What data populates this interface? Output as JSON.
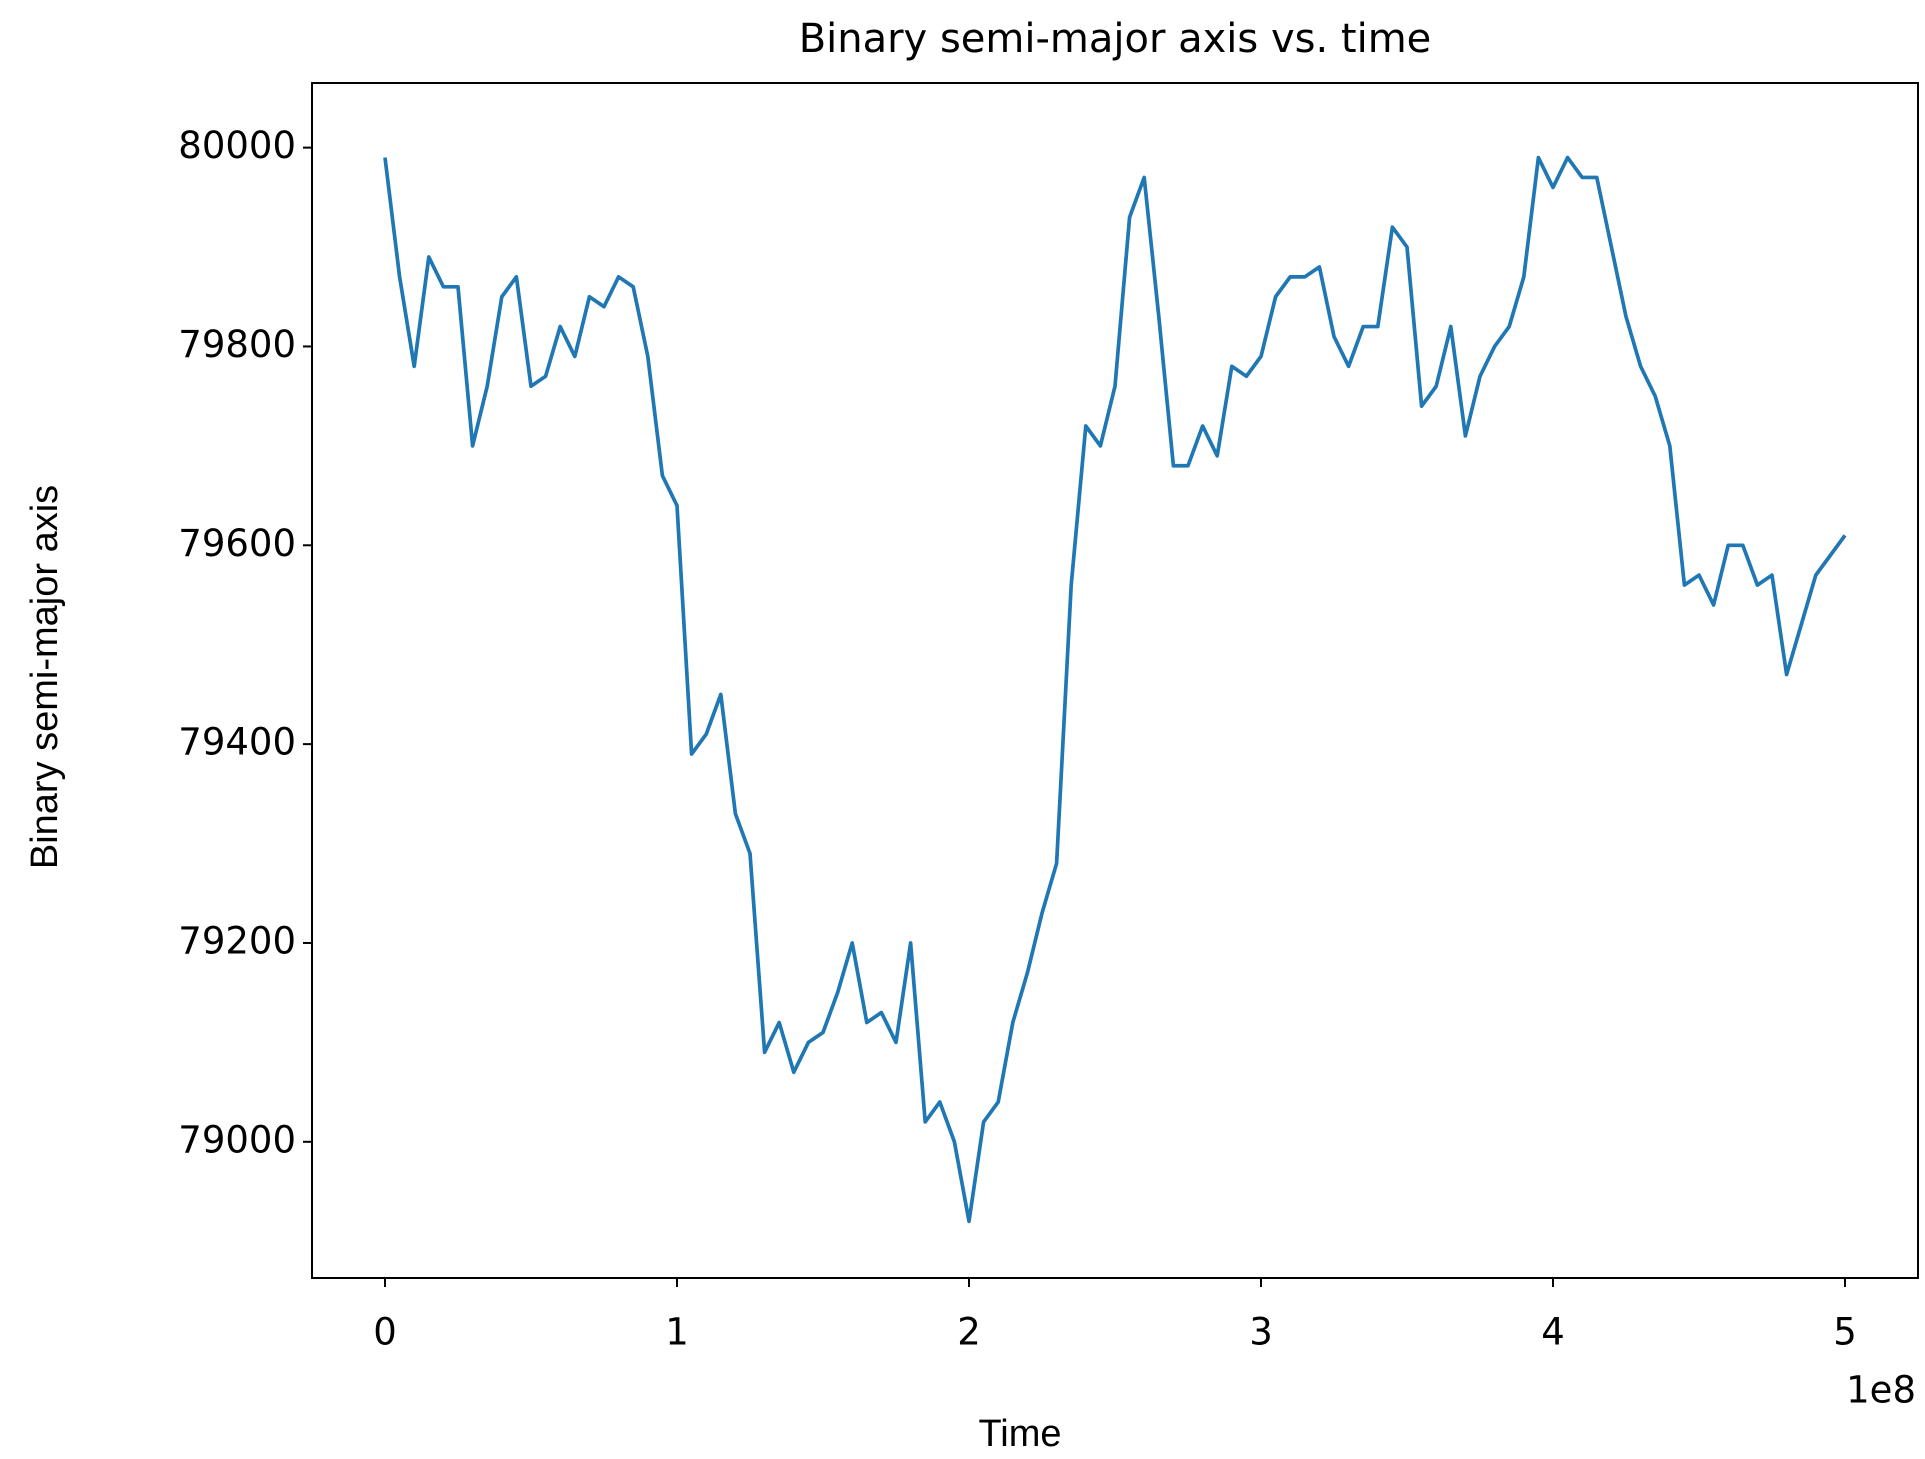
{
  "chart_data": {
    "type": "line",
    "title": "Binary semi-major axis vs. time",
    "xlabel": "Time",
    "ylabel": "Binary semi-major axis",
    "x_offset_label": "1e8",
    "x": [
      0,
      5000000,
      10000000,
      15000000,
      20000000,
      25000000,
      30000000,
      35000000,
      40000000,
      45000000,
      50000000,
      55000000,
      60000000,
      65000000,
      70000000,
      75000000,
      80000000,
      85000000,
      90000000,
      95000000,
      100000000,
      105000000,
      110000000,
      115000000,
      120000000,
      125000000,
      130000000,
      135000000,
      140000000,
      145000000,
      150000000,
      155000000,
      160000000,
      165000000,
      170000000,
      175000000,
      180000000,
      185000000,
      190000000,
      195000000,
      200000000,
      205000000,
      210000000,
      215000000,
      220000000,
      225000000,
      230000000,
      235000000,
      240000000,
      245000000,
      250000000,
      255000000,
      260000000,
      265000000,
      270000000,
      275000000,
      280000000,
      285000000,
      290000000,
      295000000,
      300000000,
      305000000,
      310000000,
      315000000,
      320000000,
      325000000,
      330000000,
      335000000,
      340000000,
      345000000,
      350000000,
      355000000,
      360000000,
      365000000,
      370000000,
      375000000,
      380000000,
      385000000,
      390000000,
      395000000,
      400000000,
      405000000,
      410000000,
      415000000,
      420000000,
      425000000,
      430000000,
      435000000,
      440000000,
      445000000,
      450000000,
      455000000,
      460000000,
      465000000,
      470000000,
      475000000,
      480000000,
      485000000,
      490000000,
      495000000,
      500000000
    ],
    "values": [
      79990,
      79870,
      79780,
      79890,
      79860,
      79860,
      79700,
      79760,
      79850,
      79870,
      79760,
      79770,
      79820,
      79790,
      79850,
      79840,
      79870,
      79860,
      79790,
      79670,
      79640,
      79390,
      79410,
      79450,
      79330,
      79290,
      79090,
      79120,
      79070,
      79100,
      79110,
      79150,
      79200,
      79120,
      79130,
      79100,
      79200,
      79020,
      79040,
      79000,
      78920,
      79020,
      79040,
      79120,
      79170,
      79230,
      79280,
      79560,
      79720,
      79700,
      79760,
      79930,
      79970,
      79830,
      79680,
      79680,
      79720,
      79690,
      79780,
      79770,
      79790,
      79850,
      79870,
      79870,
      79880,
      79810,
      79780,
      79820,
      79820,
      79920,
      79900,
      79740,
      79760,
      79820,
      79710,
      79770,
      79800,
      79820,
      79870,
      79990,
      79960,
      79990,
      79970,
      79970,
      79900,
      79830,
      79780,
      79750,
      79700,
      79560,
      79570,
      79540,
      79600,
      79600,
      79560,
      79570,
      79470,
      79520,
      79570,
      79590,
      79610
    ],
    "color": "#1f77b4",
    "xlim": [
      -25000000,
      525000000
    ],
    "ylim": [
      78863,
      80065
    ],
    "xticks": [
      {
        "value": 0,
        "label": "0"
      },
      {
        "value": 100000000,
        "label": "1"
      },
      {
        "value": 200000000,
        "label": "2"
      },
      {
        "value": 300000000,
        "label": "3"
      },
      {
        "value": 400000000,
        "label": "4"
      },
      {
        "value": 500000000,
        "label": "5"
      }
    ],
    "yticks": [
      79000,
      79200,
      79400,
      79600,
      79800,
      80000
    ],
    "grid": false
  }
}
